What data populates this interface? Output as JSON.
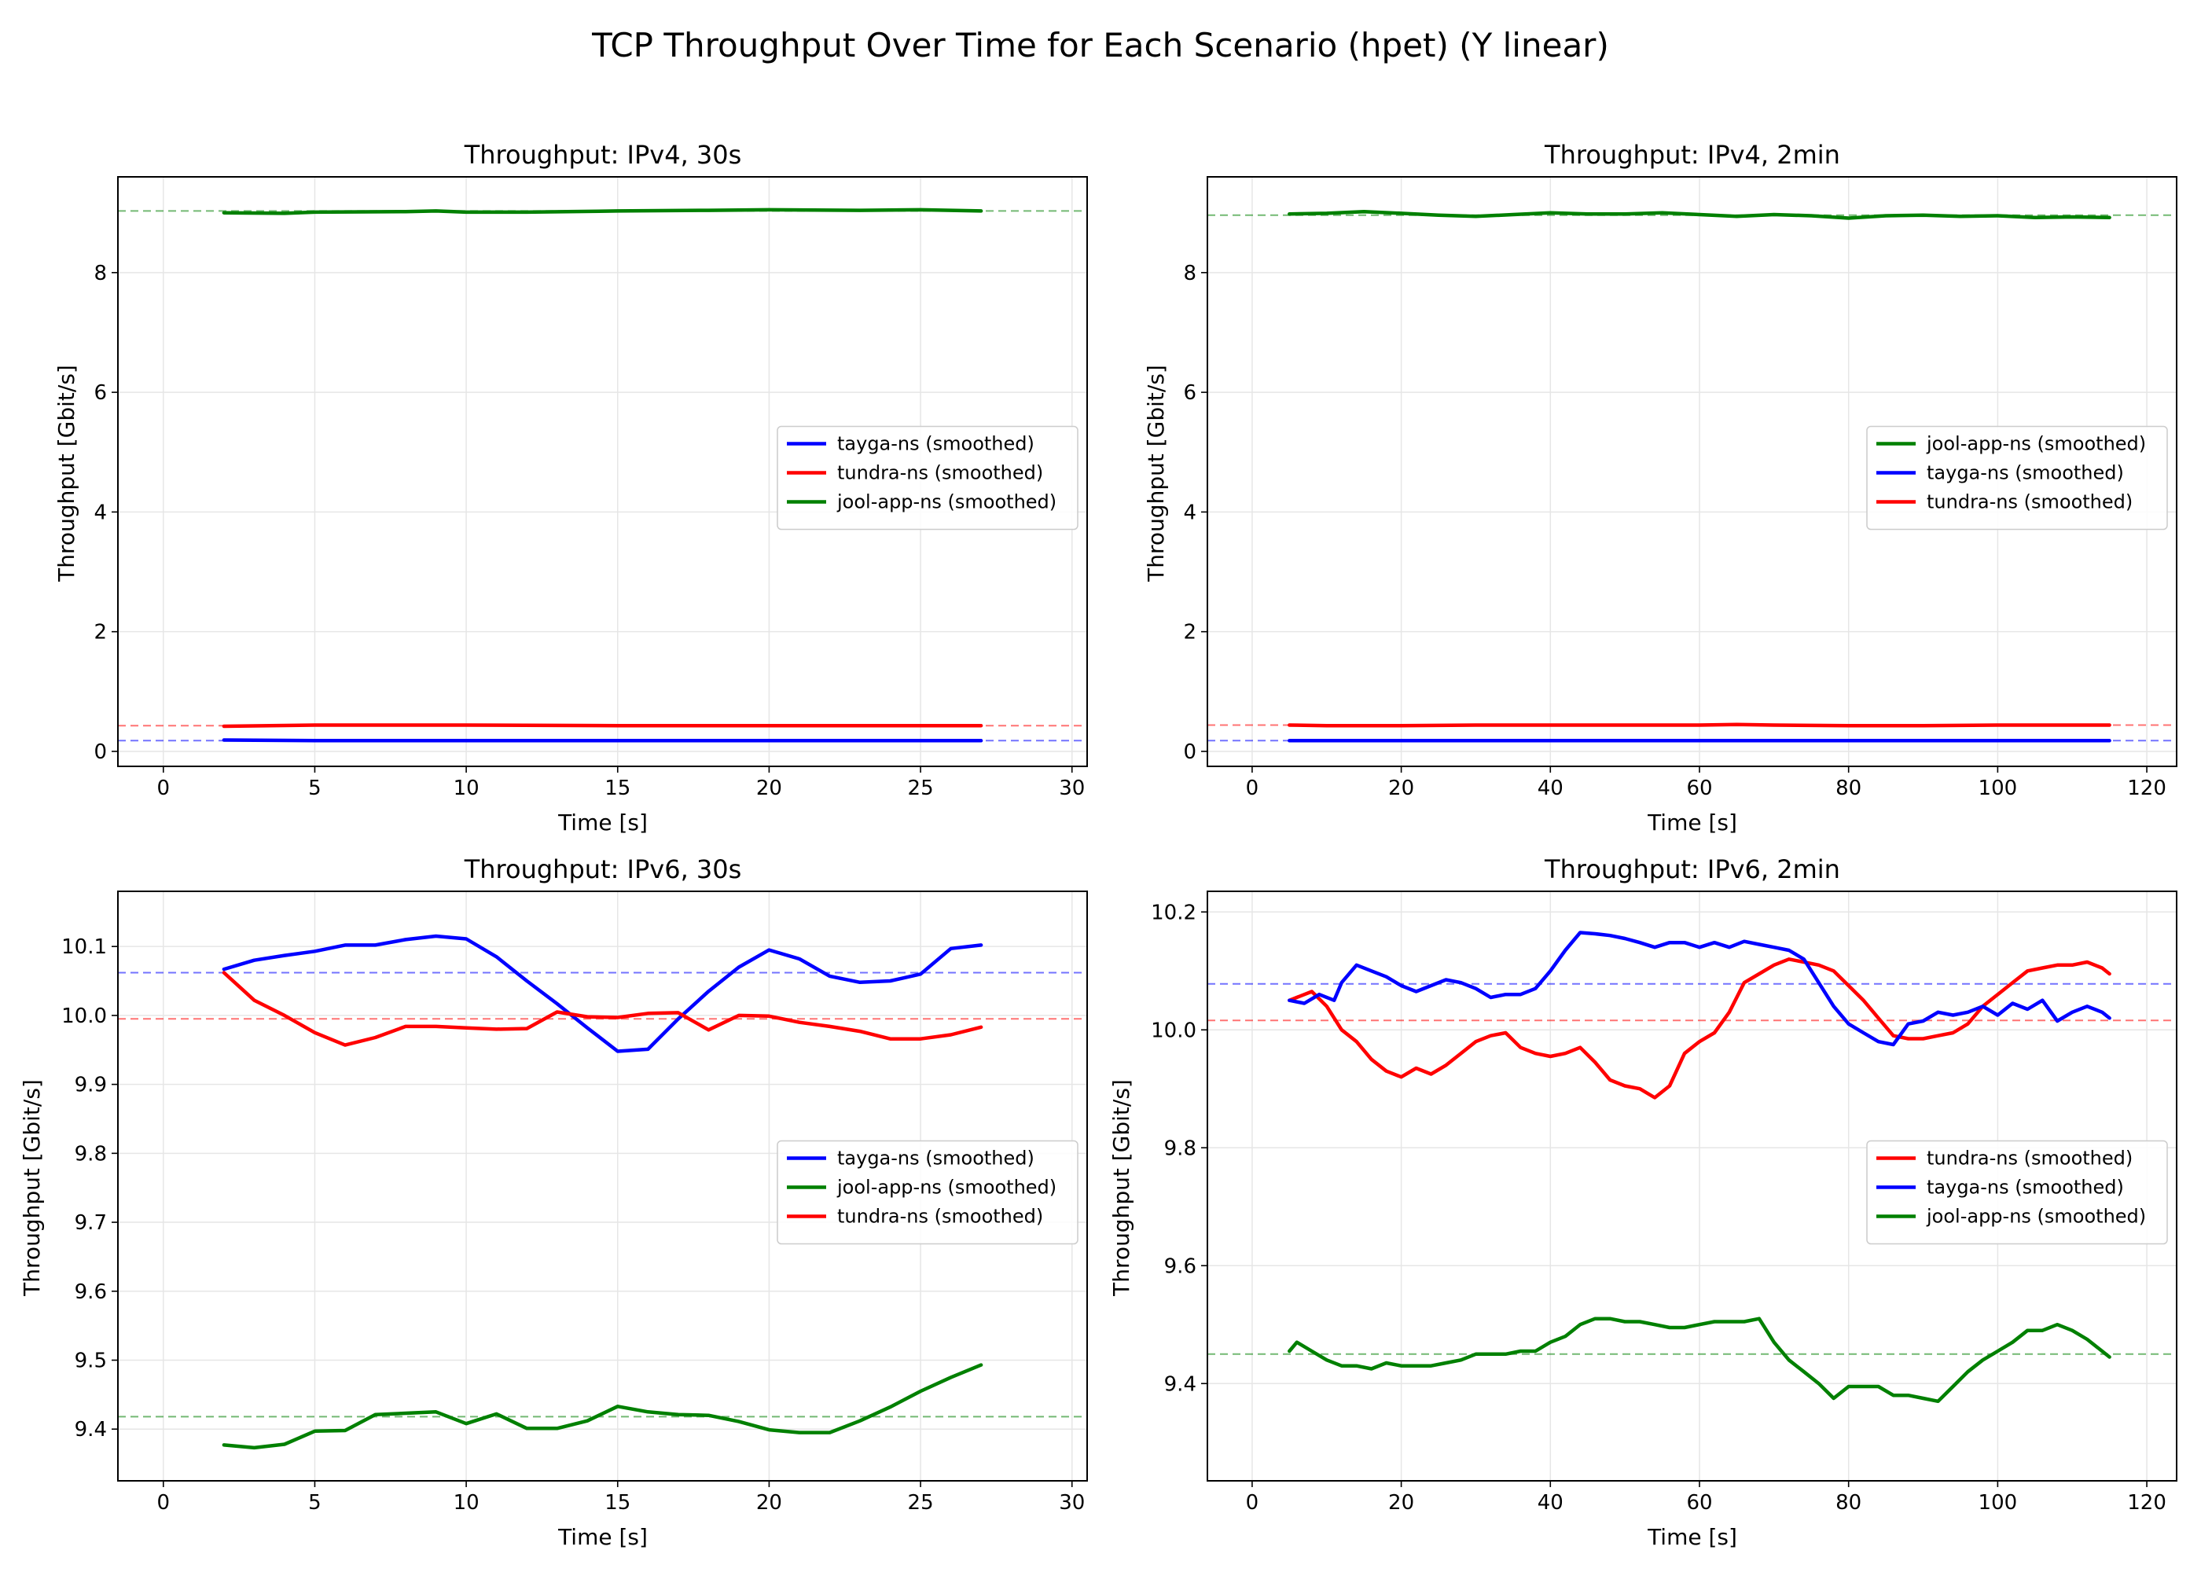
{
  "figure": {
    "title": "TCP Throughput Over Time for Each Scenario (hpet) (Y linear)"
  },
  "chart_data": [
    {
      "type": "line",
      "title": "Throughput: IPv4, 30s",
      "xlabel": "Time [s]",
      "ylabel": "Throughput [Gbit/s]",
      "xlim": [
        -1.5,
        30.5
      ],
      "ylim": [
        -0.25,
        9.6
      ],
      "xticks": [
        0,
        5,
        10,
        15,
        20,
        25,
        30
      ],
      "yticks": [
        0,
        2,
        4,
        6,
        8
      ],
      "grid": true,
      "legend_position": "center-right",
      "series": [
        {
          "name": "tayga-ns (smoothed)",
          "color": "#0000ff",
          "mean": 0.18,
          "x": [
            2,
            5,
            10,
            15,
            20,
            25,
            27
          ],
          "y": [
            0.19,
            0.18,
            0.18,
            0.18,
            0.18,
            0.18,
            0.18
          ]
        },
        {
          "name": "tundra-ns (smoothed)",
          "color": "#ff0000",
          "mean": 0.43,
          "x": [
            2,
            5,
            10,
            15,
            20,
            25,
            27
          ],
          "y": [
            0.42,
            0.44,
            0.44,
            0.43,
            0.43,
            0.43,
            0.43
          ]
        },
        {
          "name": "jool-app-ns (smoothed)",
          "color": "#008000",
          "mean": 9.03,
          "x": [
            2,
            4,
            5,
            8,
            9,
            10,
            12,
            15,
            18,
            20,
            23,
            25,
            27
          ],
          "y": [
            9.0,
            8.99,
            9.01,
            9.02,
            9.03,
            9.01,
            9.01,
            9.03,
            9.04,
            9.05,
            9.04,
            9.05,
            9.03
          ]
        }
      ]
    },
    {
      "type": "line",
      "title": "Throughput: IPv4, 2min",
      "xlabel": "Time [s]",
      "ylabel": "Throughput [Gbit/s]",
      "xlim": [
        -6,
        124
      ],
      "ylim": [
        -0.25,
        9.6
      ],
      "xticks": [
        0,
        20,
        40,
        60,
        80,
        100,
        120
      ],
      "yticks": [
        0,
        2,
        4,
        6,
        8
      ],
      "grid": true,
      "legend_position": "center-right",
      "series": [
        {
          "name": "jool-app-ns (smoothed)",
          "color": "#008000",
          "mean": 8.96,
          "x": [
            5,
            10,
            15,
            20,
            25,
            30,
            35,
            40,
            45,
            50,
            55,
            60,
            65,
            70,
            75,
            80,
            85,
            90,
            95,
            100,
            105,
            110,
            115
          ],
          "y": [
            8.98,
            8.99,
            9.02,
            8.99,
            8.96,
            8.94,
            8.97,
            9.0,
            8.98,
            8.98,
            9.0,
            8.97,
            8.94,
            8.97,
            8.95,
            8.91,
            8.95,
            8.96,
            8.94,
            8.95,
            8.92,
            8.93,
            8.92
          ]
        },
        {
          "name": "tayga-ns (smoothed)",
          "color": "#0000ff",
          "mean": 0.18,
          "x": [
            5,
            20,
            40,
            60,
            80,
            100,
            115
          ],
          "y": [
            0.18,
            0.18,
            0.18,
            0.18,
            0.18,
            0.18,
            0.18
          ]
        },
        {
          "name": "tundra-ns (smoothed)",
          "color": "#ff0000",
          "mean": 0.44,
          "x": [
            5,
            10,
            20,
            30,
            40,
            50,
            60,
            65,
            70,
            80,
            90,
            100,
            115
          ],
          "y": [
            0.44,
            0.43,
            0.43,
            0.44,
            0.44,
            0.44,
            0.44,
            0.45,
            0.44,
            0.43,
            0.43,
            0.44,
            0.44
          ]
        }
      ]
    },
    {
      "type": "line",
      "title": "Throughput: IPv6, 30s",
      "xlabel": "Time [s]",
      "ylabel": "Throughput [Gbit/s]",
      "xlim": [
        -1.5,
        30.5
      ],
      "ylim": [
        9.325,
        10.18
      ],
      "xticks": [
        0,
        5,
        10,
        15,
        20,
        25,
        30
      ],
      "yticks": [
        9.4,
        9.5,
        9.6,
        9.7,
        9.8,
        9.9,
        10.0,
        10.1
      ],
      "grid": true,
      "legend_position": "center-right",
      "series": [
        {
          "name": "tayga-ns (smoothed)",
          "color": "#0000ff",
          "mean": 10.062,
          "x": [
            2,
            3,
            4,
            5,
            6,
            7,
            8,
            9,
            10,
            11,
            12,
            13,
            14,
            15,
            16,
            17,
            18,
            19,
            20,
            21,
            22,
            23,
            24,
            25,
            26,
            27
          ],
          "y": [
            10.067,
            10.08,
            10.087,
            10.093,
            10.102,
            10.102,
            10.11,
            10.115,
            10.111,
            10.085,
            10.05,
            10.017,
            9.982,
            9.948,
            9.951,
            9.995,
            10.035,
            10.07,
            10.095,
            10.082,
            10.057,
            10.048,
            10.05,
            10.06,
            10.097,
            10.102
          ]
        },
        {
          "name": "jool-app-ns (smoothed)",
          "color": "#008000",
          "mean": 9.418,
          "x": [
            2,
            3,
            4,
            5,
            6,
            7,
            8,
            9,
            10,
            11,
            12,
            13,
            14,
            15,
            16,
            17,
            18,
            19,
            20,
            21,
            22,
            23,
            24,
            25,
            26,
            27
          ],
          "y": [
            9.377,
            9.373,
            9.378,
            9.397,
            9.398,
            9.421,
            9.423,
            9.425,
            9.408,
            9.422,
            9.401,
            9.401,
            9.412,
            9.433,
            9.425,
            9.421,
            9.42,
            9.411,
            9.399,
            9.395,
            9.395,
            9.412,
            9.432,
            9.455,
            9.475,
            9.493
          ]
        },
        {
          "name": "tundra-ns (smoothed)",
          "color": "#ff0000",
          "mean": 9.995,
          "x": [
            2,
            3,
            4,
            5,
            6,
            7,
            8,
            9,
            10,
            11,
            12,
            13,
            14,
            15,
            16,
            17,
            18,
            19,
            20,
            21,
            22,
            23,
            24,
            25,
            26,
            27
          ],
          "y": [
            10.062,
            10.022,
            10.0,
            9.975,
            9.957,
            9.968,
            9.984,
            9.984,
            9.982,
            9.98,
            9.981,
            10.005,
            9.998,
            9.997,
            10.003,
            10.004,
            9.979,
            10.0,
            9.999,
            9.99,
            9.984,
            9.977,
            9.966,
            9.966,
            9.972,
            9.983
          ]
        }
      ]
    },
    {
      "type": "line",
      "title": "Throughput: IPv6, 2min",
      "xlabel": "Time [s]",
      "ylabel": "Throughput [Gbit/s]",
      "xlim": [
        -6,
        124
      ],
      "ylim": [
        9.235,
        10.235
      ],
      "xticks": [
        0,
        20,
        40,
        60,
        80,
        100,
        120
      ],
      "yticks": [
        9.4,
        9.6,
        9.8,
        10.0,
        10.2
      ],
      "grid": true,
      "legend_position": "center-right",
      "series": [
        {
          "name": "tundra-ns (smoothed)",
          "color": "#ff0000",
          "mean": 10.016,
          "x": [
            5,
            8,
            10,
            12,
            14,
            16,
            18,
            20,
            22,
            24,
            26,
            28,
            30,
            32,
            34,
            36,
            38,
            40,
            42,
            44,
            46,
            48,
            50,
            52,
            54,
            56,
            58,
            60,
            62,
            64,
            66,
            68,
            70,
            72,
            74,
            76,
            78,
            80,
            82,
            84,
            86,
            88,
            90,
            92,
            94,
            96,
            98,
            100,
            102,
            104,
            106,
            108,
            110,
            112,
            114,
            115
          ],
          "y": [
            10.05,
            10.065,
            10.04,
            10.0,
            9.98,
            9.95,
            9.93,
            9.92,
            9.935,
            9.925,
            9.94,
            9.96,
            9.98,
            9.99,
            9.995,
            9.97,
            9.96,
            9.955,
            9.96,
            9.97,
            9.945,
            9.915,
            9.905,
            9.9,
            9.885,
            9.905,
            9.96,
            9.98,
            9.995,
            10.03,
            10.08,
            10.095,
            10.11,
            10.12,
            10.115,
            10.11,
            10.1,
            10.075,
            10.05,
            10.02,
            9.99,
            9.985,
            9.985,
            9.99,
            9.995,
            10.01,
            10.04,
            10.06,
            10.08,
            10.1,
            10.105,
            10.11,
            10.11,
            10.115,
            10.105,
            10.095
          ]
        },
        {
          "name": "tayga-ns (smoothed)",
          "color": "#0000ff",
          "mean": 10.078,
          "x": [
            5,
            7,
            9,
            11,
            12,
            14,
            16,
            18,
            20,
            22,
            24,
            26,
            28,
            30,
            32,
            34,
            36,
            38,
            40,
            42,
            44,
            46,
            48,
            50,
            52,
            54,
            56,
            58,
            60,
            62,
            64,
            66,
            68,
            70,
            72,
            74,
            76,
            78,
            80,
            82,
            84,
            86,
            88,
            90,
            92,
            94,
            96,
            98,
            100,
            102,
            104,
            106,
            108,
            110,
            112,
            114,
            115
          ],
          "y": [
            10.05,
            10.045,
            10.06,
            10.05,
            10.08,
            10.11,
            10.1,
            10.09,
            10.075,
            10.065,
            10.075,
            10.085,
            10.08,
            10.07,
            10.055,
            10.06,
            10.06,
            10.07,
            10.1,
            10.135,
            10.165,
            10.163,
            10.16,
            10.155,
            10.148,
            10.14,
            10.148,
            10.148,
            10.14,
            10.148,
            10.14,
            10.15,
            10.145,
            10.14,
            10.135,
            10.12,
            10.08,
            10.04,
            10.01,
            9.995,
            9.98,
            9.975,
            10.01,
            10.015,
            10.03,
            10.025,
            10.03,
            10.04,
            10.025,
            10.045,
            10.035,
            10.05,
            10.015,
            10.03,
            10.04,
            10.03,
            10.02
          ]
        },
        {
          "name": "jool-app-ns (smoothed)",
          "color": "#008000",
          "mean": 9.45,
          "x": [
            5,
            6,
            8,
            10,
            12,
            14,
            16,
            18,
            20,
            22,
            24,
            26,
            28,
            30,
            32,
            34,
            36,
            38,
            40,
            42,
            44,
            46,
            48,
            50,
            52,
            54,
            56,
            58,
            60,
            62,
            64,
            66,
            68,
            70,
            72,
            74,
            76,
            78,
            80,
            82,
            84,
            86,
            88,
            90,
            92,
            94,
            96,
            98,
            100,
            102,
            104,
            106,
            108,
            110,
            112,
            114,
            115
          ],
          "y": [
            9.455,
            9.47,
            9.455,
            9.44,
            9.43,
            9.43,
            9.425,
            9.435,
            9.43,
            9.43,
            9.43,
            9.435,
            9.44,
            9.45,
            9.45,
            9.45,
            9.455,
            9.455,
            9.47,
            9.48,
            9.5,
            9.51,
            9.51,
            9.505,
            9.505,
            9.5,
            9.495,
            9.495,
            9.5,
            9.505,
            9.505,
            9.505,
            9.51,
            9.47,
            9.44,
            9.42,
            9.4,
            9.375,
            9.395,
            9.395,
            9.395,
            9.38,
            9.38,
            9.375,
            9.37,
            9.395,
            9.42,
            9.44,
            9.455,
            9.47,
            9.49,
            9.49,
            9.5,
            9.49,
            9.475,
            9.455,
            9.445
          ]
        }
      ]
    }
  ]
}
